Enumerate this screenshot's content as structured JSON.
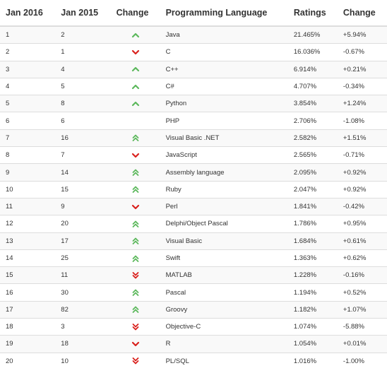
{
  "headers": {
    "jan2016": "Jan 2016",
    "jan2015": "Jan 2015",
    "change_icon": "Change",
    "language": "Programming Language",
    "ratings": "Ratings",
    "change": "Change"
  },
  "colors": {
    "up": "#5cb85c",
    "down": "#d9211d",
    "border": "#dddddd",
    "stripe": "#f9f9f9"
  },
  "rows": [
    {
      "jan2016": "1",
      "jan2015": "2",
      "trend": "up",
      "language": "Java",
      "ratings": "21.465%",
      "change": "+5.94%"
    },
    {
      "jan2016": "2",
      "jan2015": "1",
      "trend": "down",
      "language": "C",
      "ratings": "16.036%",
      "change": "-0.67%"
    },
    {
      "jan2016": "3",
      "jan2015": "4",
      "trend": "up",
      "language": "C++",
      "ratings": "6.914%",
      "change": "+0.21%"
    },
    {
      "jan2016": "4",
      "jan2015": "5",
      "trend": "up",
      "language": "C#",
      "ratings": "4.707%",
      "change": "-0.34%"
    },
    {
      "jan2016": "5",
      "jan2015": "8",
      "trend": "up",
      "language": "Python",
      "ratings": "3.854%",
      "change": "+1.24%"
    },
    {
      "jan2016": "6",
      "jan2015": "6",
      "trend": "none",
      "language": "PHP",
      "ratings": "2.706%",
      "change": "-1.08%"
    },
    {
      "jan2016": "7",
      "jan2015": "16",
      "trend": "up-double",
      "language": "Visual Basic .NET",
      "ratings": "2.582%",
      "change": "+1.51%"
    },
    {
      "jan2016": "8",
      "jan2015": "7",
      "trend": "down",
      "language": "JavaScript",
      "ratings": "2.565%",
      "change": "-0.71%"
    },
    {
      "jan2016": "9",
      "jan2015": "14",
      "trend": "up-double",
      "language": "Assembly language",
      "ratings": "2.095%",
      "change": "+0.92%"
    },
    {
      "jan2016": "10",
      "jan2015": "15",
      "trend": "up-double",
      "language": "Ruby",
      "ratings": "2.047%",
      "change": "+0.92%"
    },
    {
      "jan2016": "11",
      "jan2015": "9",
      "trend": "down",
      "language": "Perl",
      "ratings": "1.841%",
      "change": "-0.42%"
    },
    {
      "jan2016": "12",
      "jan2015": "20",
      "trend": "up-double",
      "language": "Delphi/Object Pascal",
      "ratings": "1.786%",
      "change": "+0.95%"
    },
    {
      "jan2016": "13",
      "jan2015": "17",
      "trend": "up-double",
      "language": "Visual Basic",
      "ratings": "1.684%",
      "change": "+0.61%"
    },
    {
      "jan2016": "14",
      "jan2015": "25",
      "trend": "up-double",
      "language": "Swift",
      "ratings": "1.363%",
      "change": "+0.62%"
    },
    {
      "jan2016": "15",
      "jan2015": "11",
      "trend": "down-double",
      "language": "MATLAB",
      "ratings": "1.228%",
      "change": "-0.16%"
    },
    {
      "jan2016": "16",
      "jan2015": "30",
      "trend": "up-double",
      "language": "Pascal",
      "ratings": "1.194%",
      "change": "+0.52%"
    },
    {
      "jan2016": "17",
      "jan2015": "82",
      "trend": "up-double",
      "language": "Groovy",
      "ratings": "1.182%",
      "change": "+1.07%"
    },
    {
      "jan2016": "18",
      "jan2015": "3",
      "trend": "down-double",
      "language": "Objective-C",
      "ratings": "1.074%",
      "change": "-5.88%"
    },
    {
      "jan2016": "19",
      "jan2015": "18",
      "trend": "down",
      "language": "R",
      "ratings": "1.054%",
      "change": "+0.01%"
    },
    {
      "jan2016": "20",
      "jan2015": "10",
      "trend": "down-double",
      "language": "PL/SQL",
      "ratings": "1.016%",
      "change": "-1.00%"
    }
  ]
}
